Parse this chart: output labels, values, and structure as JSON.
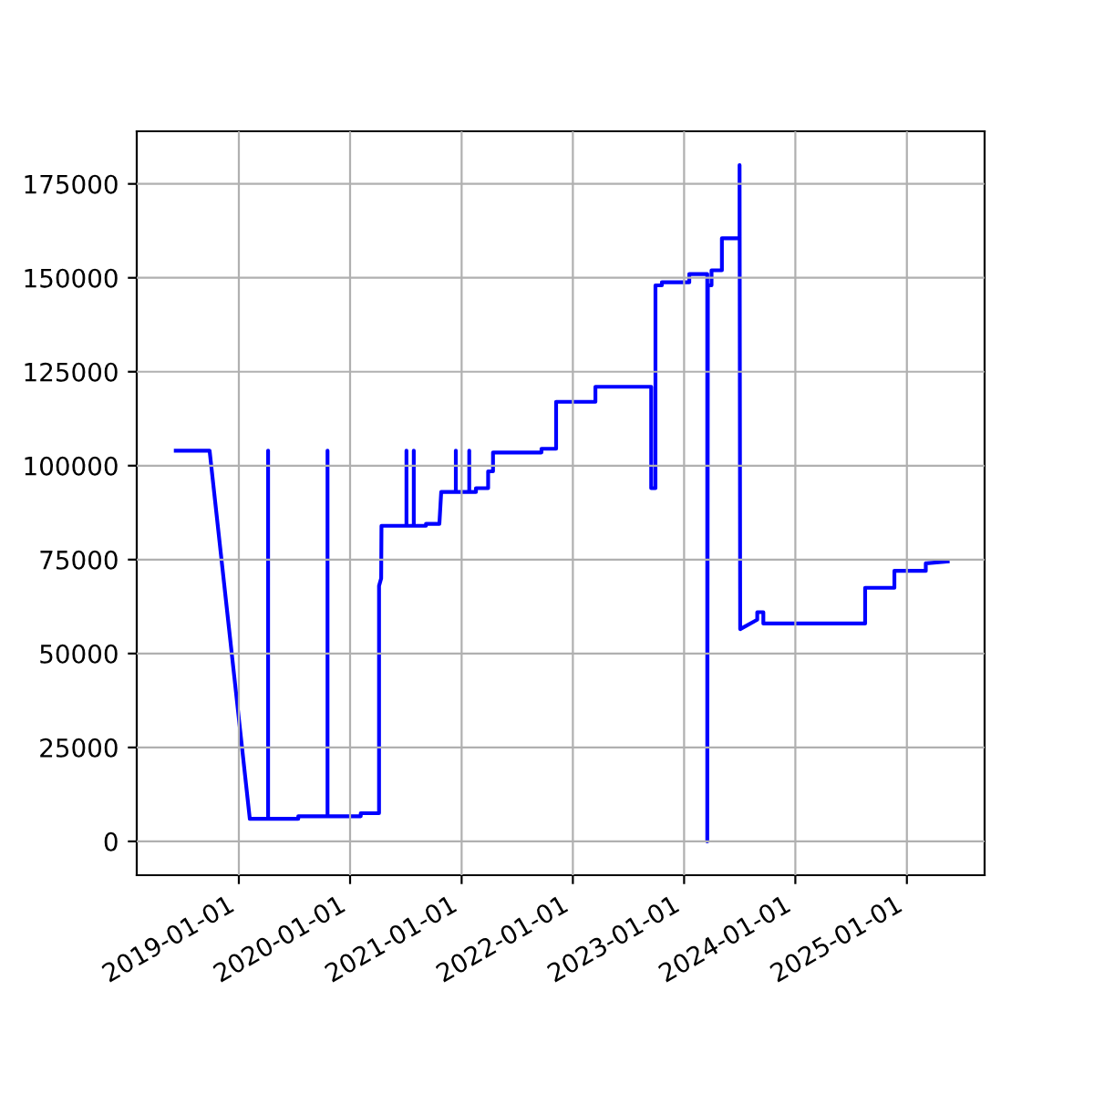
{
  "chart_data": {
    "type": "line",
    "x": [
      "2018-06-08",
      "2018-09-27",
      "2019-02-06",
      "2019-04-07",
      "2019-04-07",
      "2019-04-07",
      "2019-07-15",
      "2019-07-15",
      "2019-10-19",
      "2019-10-19",
      "2019-10-19",
      "2020-02-05",
      "2020-02-05",
      "2020-04-05",
      "2020-04-05",
      "2020-04-12",
      "2020-04-13",
      "2020-07-04",
      "2020-07-04",
      "2020-07-04",
      "2020-07-28",
      "2020-07-28",
      "2020-07-28",
      "2020-09-06",
      "2020-09-06",
      "2020-10-20",
      "2020-10-26",
      "2020-12-13",
      "2020-12-13",
      "2020-12-13",
      "2021-01-26",
      "2021-01-26",
      "2021-01-26",
      "2021-02-17",
      "2021-02-17",
      "2021-03-29",
      "2021-03-29",
      "2021-04-14",
      "2021-04-14",
      "2021-09-20",
      "2021-09-20",
      "2021-11-07",
      "2021-11-07",
      "2022-03-16",
      "2022-03-16",
      "2022-09-15",
      "2022-09-15",
      "2022-09-29",
      "2022-09-29",
      "2022-10-20",
      "2022-10-20",
      "2023-01-18",
      "2023-01-18",
      "2023-03-18",
      "2023-03-18",
      "2023-03-20",
      "2023-04-01",
      "2023-04-01",
      "2023-05-05",
      "2023-05-05",
      "2023-07-02",
      "2023-07-02",
      "2023-07-04",
      "2023-08-29",
      "2023-08-29",
      "2023-09-18",
      "2023-09-18",
      "2024-08-17",
      "2024-08-17",
      "2024-11-21",
      "2024-11-21",
      "2025-03-04",
      "2025-03-04",
      "2025-05-15"
    ],
    "series": [
      {
        "color": "#0000ff",
        "values": [
          104000,
          104000,
          6000,
          6000,
          104000,
          6000,
          6000,
          6700,
          6700,
          104000,
          6700,
          6700,
          7500,
          7500,
          68000,
          70000,
          84000,
          84000,
          104000,
          84000,
          84000,
          104000,
          84000,
          84000,
          84500,
          84500,
          93000,
          93000,
          104000,
          93000,
          93000,
          104000,
          93000,
          93000,
          94000,
          94000,
          98500,
          98500,
          103500,
          103500,
          104500,
          104500,
          117000,
          117000,
          121000,
          121000,
          94000,
          94000,
          148000,
          148000,
          148800,
          148800,
          151000,
          151000,
          0,
          148000,
          148000,
          152000,
          152000,
          160500,
          160500,
          180000,
          56500,
          59000,
          61000,
          61000,
          58000,
          58000,
          67500,
          67500,
          72000,
          72000,
          74000,
          74500
        ]
      }
    ],
    "xlim": [
      "2018-01-31",
      "2025-09-13"
    ],
    "ylim": [
      -9000,
      189000
    ],
    "xticks": [
      "2019-01-01",
      "2020-01-01",
      "2021-01-01",
      "2022-01-01",
      "2023-01-01",
      "2024-01-01",
      "2025-01-01"
    ],
    "yticks": [
      0,
      25000,
      50000,
      75000,
      100000,
      125000,
      150000,
      175000
    ],
    "grid": true
  }
}
